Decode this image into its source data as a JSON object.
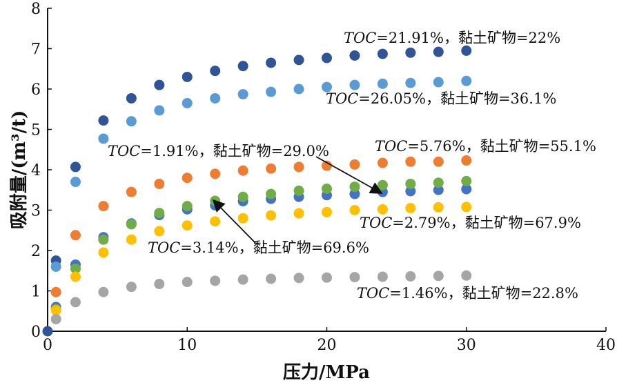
{
  "chart_data": {
    "type": "scatter",
    "xlabel": "压力/MPa",
    "ylabel": "吸附量/(m³/t)",
    "xlim": [
      0,
      40
    ],
    "ylim": [
      0,
      8
    ],
    "xticks": [
      0,
      10,
      20,
      30,
      40
    ],
    "yticks": [
      0,
      1,
      2,
      3,
      4,
      5,
      6,
      7,
      8
    ],
    "grid": false,
    "x": [
      0.6,
      2,
      4,
      6,
      8,
      10,
      12,
      14,
      16,
      18,
      20,
      22,
      24,
      26,
      28,
      30
    ],
    "series": [
      {
        "color": "#2f5597",
        "values": [
          1.75,
          4.07,
          5.22,
          5.77,
          6.1,
          6.3,
          6.45,
          6.57,
          6.65,
          6.72,
          6.77,
          6.83,
          6.87,
          6.9,
          6.92,
          6.95
        ]
      },
      {
        "color": "#5b9bd5",
        "values": [
          1.6,
          3.7,
          4.77,
          5.2,
          5.47,
          5.65,
          5.77,
          5.87,
          5.93,
          6.0,
          6.05,
          6.1,
          6.13,
          6.15,
          6.17,
          6.2
        ]
      },
      {
        "color": "#ed7d31",
        "values": [
          0.97,
          2.38,
          3.1,
          3.45,
          3.65,
          3.8,
          3.9,
          3.98,
          4.03,
          4.07,
          4.1,
          4.13,
          4.17,
          4.2,
          4.2,
          4.23
        ]
      },
      {
        "color": "#4472c4",
        "values": [
          0.6,
          1.65,
          2.33,
          2.67,
          2.88,
          3.02,
          3.12,
          3.22,
          3.28,
          3.33,
          3.37,
          3.4,
          3.45,
          3.47,
          3.5,
          3.52
        ]
      },
      {
        "color": "#70ad47",
        "values": [
          0.55,
          1.55,
          2.27,
          2.65,
          2.93,
          3.1,
          3.23,
          3.33,
          3.4,
          3.48,
          3.53,
          3.58,
          3.62,
          3.65,
          3.68,
          3.72
        ]
      },
      {
        "color": "#ffc000",
        "values": [
          0.52,
          1.35,
          1.95,
          2.27,
          2.48,
          2.62,
          2.72,
          2.8,
          2.87,
          2.92,
          2.95,
          3.0,
          3.02,
          3.05,
          3.07,
          3.08
        ]
      },
      {
        "color": "#a5a5a5",
        "values": [
          0.3,
          0.72,
          0.97,
          1.1,
          1.17,
          1.22,
          1.25,
          1.28,
          1.3,
          1.32,
          1.33,
          1.34,
          1.35,
          1.36,
          1.37,
          1.38
        ]
      }
    ],
    "origin_point": {
      "x": 0,
      "y": 0,
      "color": "#2f5597"
    },
    "annotations": [
      {
        "prefix": "TOC",
        "text": "=21.91%，黏土矿物=22%"
      },
      {
        "prefix": "TOC",
        "text": "=26.05%，黏土矿物=36.1%"
      },
      {
        "prefix": "TOC",
        "text": "=1.91%，黏土矿物=29.0%"
      },
      {
        "prefix": "TOC",
        "text": "=5.76%，黏土矿物=55.1%"
      },
      {
        "prefix": "TOC",
        "text": "=2.79%，黏土矿物=67.9%"
      },
      {
        "prefix": "TOC",
        "text": "=3.14%，黏土矿物=69.6%"
      },
      {
        "prefix": "TOC",
        "text": "=1.46%，黏土矿物=22.8%"
      }
    ]
  }
}
